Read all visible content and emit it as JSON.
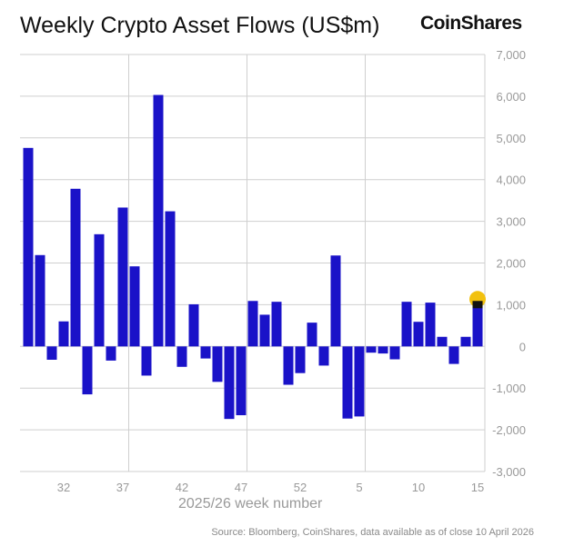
{
  "chart_data": {
    "type": "bar",
    "title": "Weekly Crypto Asset Flows (US$m)",
    "xlabel": "2025/26 week number",
    "ylabel": "",
    "ylim": [
      -3000,
      7000
    ],
    "yticks": [
      "7,000",
      "6,000",
      "5,000",
      "4,000",
      "3,000",
      "2,000",
      "1,000",
      "0",
      "-1,000",
      "-2,000",
      "-3,000"
    ],
    "ytick_values": [
      7000,
      6000,
      5000,
      4000,
      3000,
      2000,
      1000,
      0,
      -1000,
      -2000,
      -3000
    ],
    "xticks": [
      "32",
      "37",
      "42",
      "47",
      "52",
      "5",
      "10",
      "15"
    ],
    "categories": [
      "29",
      "30",
      "31",
      "32",
      "33",
      "34",
      "35",
      "36",
      "37",
      "38",
      "39",
      "40",
      "41",
      "42",
      "43",
      "44",
      "45",
      "46",
      "47",
      "48",
      "49",
      "50",
      "51",
      "52",
      "1",
      "2",
      "3",
      "4",
      "5",
      "6",
      "7",
      "8",
      "9",
      "10",
      "11",
      "12",
      "13",
      "14",
      "15"
    ],
    "values": [
      4760,
      2190,
      -320,
      600,
      3780,
      -1150,
      2690,
      -340,
      3330,
      1920,
      -700,
      6030,
      3240,
      -490,
      1010,
      -290,
      -850,
      -1740,
      -1650,
      1090,
      760,
      1070,
      -920,
      -640,
      570,
      -460,
      2180,
      -1730,
      -1680,
      -150,
      -170,
      -310,
      1070,
      590,
      1050,
      230,
      -420,
      230,
      1090
    ],
    "grid": true,
    "y_axis_position": "right",
    "bar_color": "#1a12c8",
    "highlight_marker_color": "#f2c10f",
    "highlight": "last bar"
  },
  "brand": "CoinShares",
  "source": "Source: Bloomberg, CoinShares, data available as of close 10 April 2026"
}
